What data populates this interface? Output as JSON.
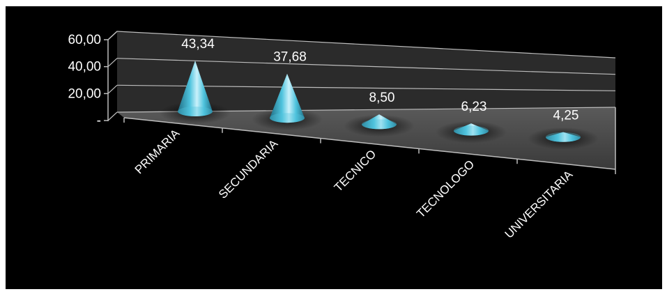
{
  "chart_data": {
    "type": "bar",
    "style": "3d-cone",
    "title": "",
    "xlabel": "",
    "ylabel": "",
    "categories": [
      "PRIMARIA",
      "SECUNDARIA",
      "TECNICO",
      "TECNOLOGO",
      "UNIVERSITARIA"
    ],
    "values": [
      43.34,
      37.68,
      8.5,
      6.23,
      4.25
    ],
    "data_labels": [
      "43,34",
      "37,68",
      "8,50",
      "6,23",
      "4,25"
    ],
    "y_ticks": [
      {
        "value": 0,
        "label": "-"
      },
      {
        "value": 20,
        "label": "20,00"
      },
      {
        "value": 40,
        "label": "40,00"
      },
      {
        "value": 60,
        "label": "60,00"
      }
    ],
    "ylim": [
      0,
      60
    ],
    "grid": true,
    "legend": "none",
    "colors": {
      "background": "#000000",
      "cone": "#4fc3dd",
      "cone_highlight": "#c9f1fb",
      "cone_shadow": "#1f6f86",
      "wall": "#2b2b2b",
      "floor": "#454545",
      "gridline": "#bdbdbd",
      "text": "#ffffff"
    }
  }
}
